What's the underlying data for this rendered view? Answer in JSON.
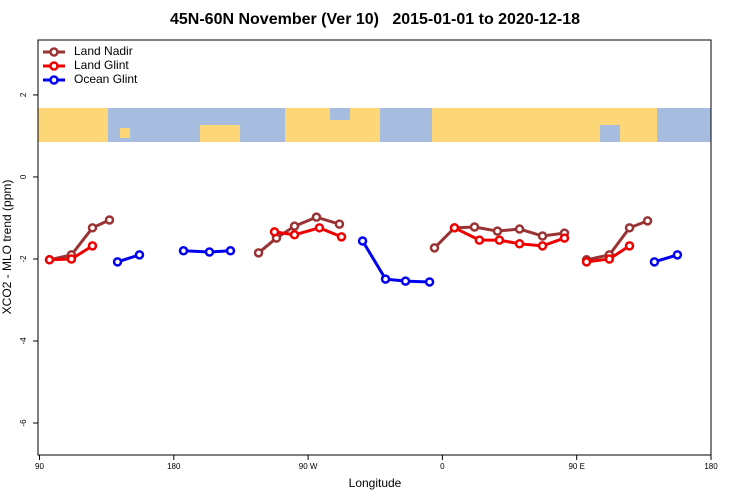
{
  "chart_data": {
    "type": "line",
    "title": "45N-60N November (Ver 10)   2015-01-01 to 2020-12-18",
    "xlabel": "Longitude",
    "ylabel": "XCO2 - MLO trend (ppm)",
    "xlim": [
      89,
      540
    ],
    "ylim": [
      -6.78,
      3.34
    ],
    "xticks": [
      90,
      180,
      {
        "value": 270,
        "label": "90 W"
      },
      {
        "value": 360,
        "label": "0"
      },
      {
        "value": 450,
        "label": "90 E"
      },
      {
        "value": 540,
        "label": "180"
      }
    ],
    "yticks": [
      -6,
      -4,
      -2,
      0,
      2
    ],
    "legend": "top-left",
    "series": [
      {
        "name": "Land Nadir",
        "color": "#993333",
        "x": [
          96.7,
          111.4,
          125.5,
          136.9,
          null,
          236.8,
          248.8,
          260.9,
          275.6,
          291.0,
          null,
          354.7,
          368.1,
          381.5,
          396.9,
          411.7,
          427.1,
          441.8,
          null,
          456.6,
          471.9,
          485.4,
          497.5
        ],
        "values": [
          -2.02,
          -1.9,
          -1.24,
          -1.05,
          null,
          -1.85,
          -1.49,
          -1.2,
          -0.98,
          -1.15,
          null,
          -1.73,
          -1.24,
          -1.22,
          -1.32,
          -1.27,
          -1.44,
          -1.37,
          null,
          -2.02,
          -1.9,
          -1.24,
          -1.07
        ]
      },
      {
        "name": "Land Glint",
        "color": "#ee0000",
        "x": [
          96.7,
          111.4,
          125.5,
          null,
          247.5,
          260.9,
          277.6,
          292.4,
          null,
          368.1,
          384.8,
          398.2,
          411.7,
          427.1,
          441.8,
          null,
          456.6,
          471.9,
          485.4
        ],
        "values": [
          -2.02,
          -2.0,
          -1.68,
          null,
          -1.34,
          -1.41,
          -1.24,
          -1.46,
          null,
          -1.24,
          -1.54,
          -1.54,
          -1.63,
          -1.68,
          -1.49,
          null,
          -2.07,
          -2.0,
          -1.68
        ]
      },
      {
        "name": "Ocean Glint",
        "color": "#0000ee",
        "x": [
          142.3,
          157.0,
          null,
          186.5,
          203.9,
          218.0,
          null,
          306.5,
          321.9,
          335.3,
          351.4,
          null,
          502.1,
          517.5
        ],
        "values": [
          -2.07,
          -1.9,
          null,
          -1.8,
          -1.83,
          -1.8,
          null,
          -1.56,
          -2.49,
          -2.54,
          -2.56,
          null,
          -2.07,
          -1.9
        ]
      }
    ]
  }
}
